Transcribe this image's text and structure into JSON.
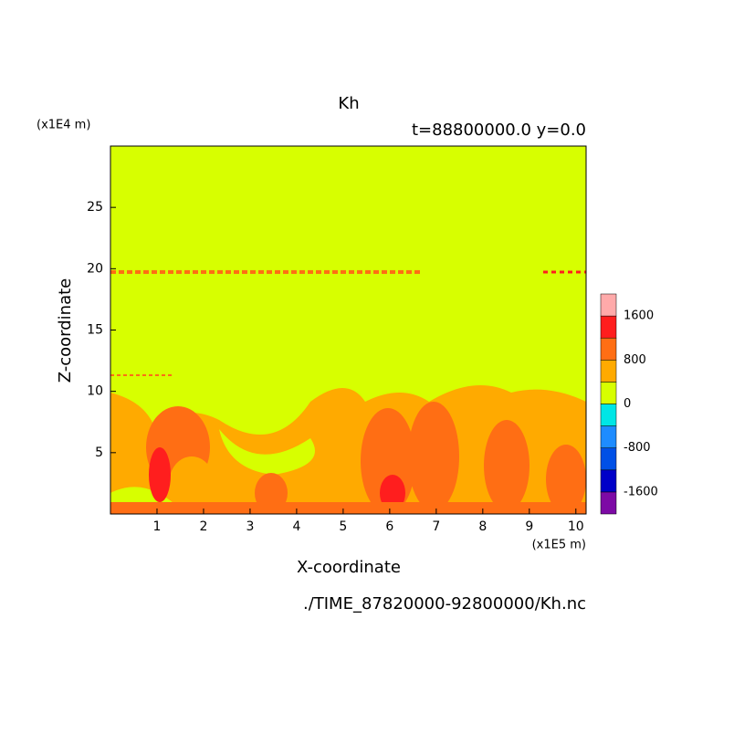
{
  "chart_data": {
    "type": "contour",
    "title": "Kh",
    "subtitle": "t=88800000.0 y=0.0",
    "x_label": "X-coordinate",
    "y_label": "Z-coordinate",
    "x_unit": "(x1E5 m)",
    "y_unit": "(x1E4 m)",
    "source": "./TIME_87820000-92800000/Kh.nc",
    "xlim": [
      0,
      10.22
    ],
    "xticks": [
      1,
      2,
      3,
      4,
      5,
      6,
      7,
      8,
      9,
      10
    ],
    "ylim": [
      0,
      30
    ],
    "yticks": [
      5,
      10,
      15,
      20,
      25
    ],
    "colorbar": {
      "levels": [
        -2000,
        -1600,
        -1200,
        -800,
        -400,
        0,
        400,
        800,
        1200,
        1600,
        2000
      ],
      "labels": [
        -1600,
        -800,
        0,
        800,
        1600
      ],
      "colors": [
        "#7d0aa5",
        "#0000c8",
        "#0050e6",
        "#1e8cff",
        "#00e6e6",
        "#d7ff00",
        "#ffaa00",
        "#ff6e14",
        "#ff1e1e",
        "#ffaaaa"
      ]
    }
  }
}
